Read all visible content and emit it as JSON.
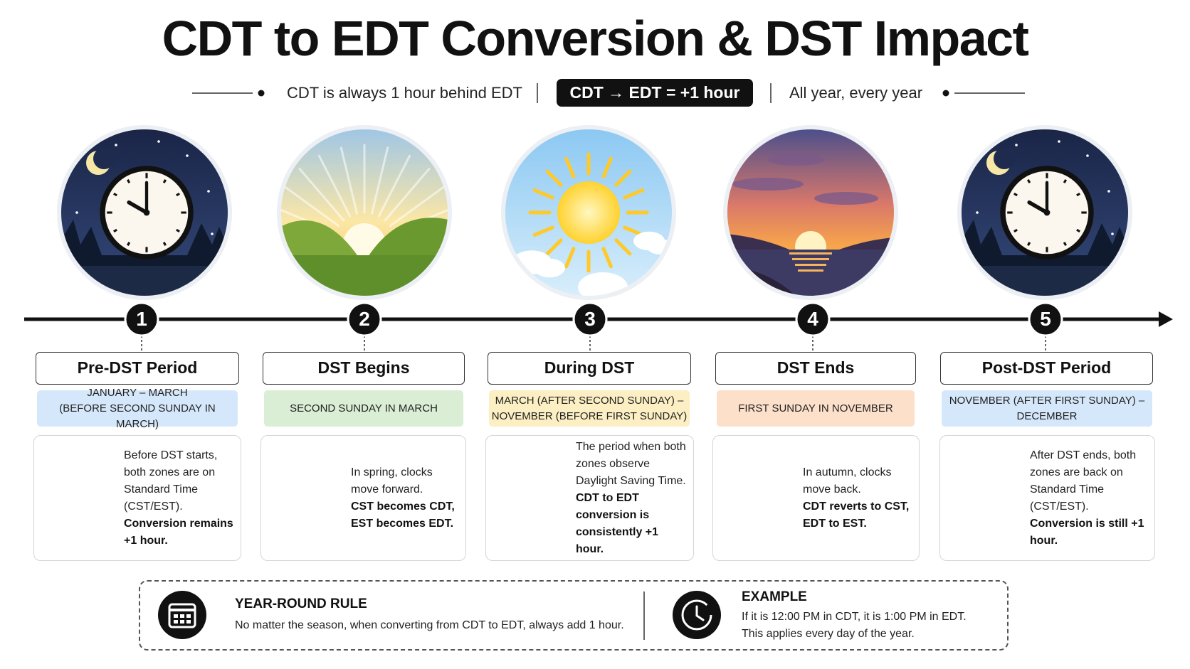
{
  "title": "CDT to EDT Conversion & DST Impact",
  "subtitle": {
    "left": "CDT is always 1 hour behind EDT",
    "badge": "CDT → EDT = +1 hour",
    "right": "All year, every year"
  },
  "stages": [
    {
      "number": "1",
      "title": "Pre-DST Period",
      "date": [
        "JANUARY – MARCH",
        "(BEFORE SECOND SUNDAY IN MARCH)"
      ],
      "text": "Before DST starts, both zones are on Standard Time (CST/EST).",
      "bold": "Conversion remains +1 hour."
    },
    {
      "number": "2",
      "title": "DST Begins",
      "date": [
        "SECOND SUNDAY IN MARCH"
      ],
      "text": "In spring, clocks move forward.",
      "bold": "CST becomes CDT, EST becomes EDT."
    },
    {
      "number": "3",
      "title": "During DST",
      "date": [
        "MARCH (AFTER SECOND SUNDAY) –",
        "NOVEMBER (BEFORE FIRST SUNDAY)"
      ],
      "text": "The period when both zones observe Daylight Saving Time.",
      "bold": "CDT to EDT conversion is consistently +1 hour."
    },
    {
      "number": "4",
      "title": "DST Ends",
      "date": [
        "FIRST SUNDAY IN NOVEMBER"
      ],
      "text": "In autumn, clocks move back.",
      "bold": "CDT reverts to CST, EDT to EST."
    },
    {
      "number": "5",
      "title": "Post-DST Period",
      "date": [
        "NOVEMBER (AFTER FIRST SUNDAY) –",
        "DECEMBER"
      ],
      "text": "After DST ends, both zones are back on Standard Time (CST/EST).",
      "bold": "Conversion is still +1 hour."
    }
  ],
  "footer": {
    "rule": {
      "title": "YEAR-ROUND RULE",
      "text": "No matter the season, when converting from CDT to EDT, always add 1 hour."
    },
    "example": {
      "title": "EXAMPLE",
      "lines": [
        "If it is 12:00 PM in CDT, it is 1:00 PM in EDT.",
        "This applies every day of the year."
      ]
    }
  }
}
